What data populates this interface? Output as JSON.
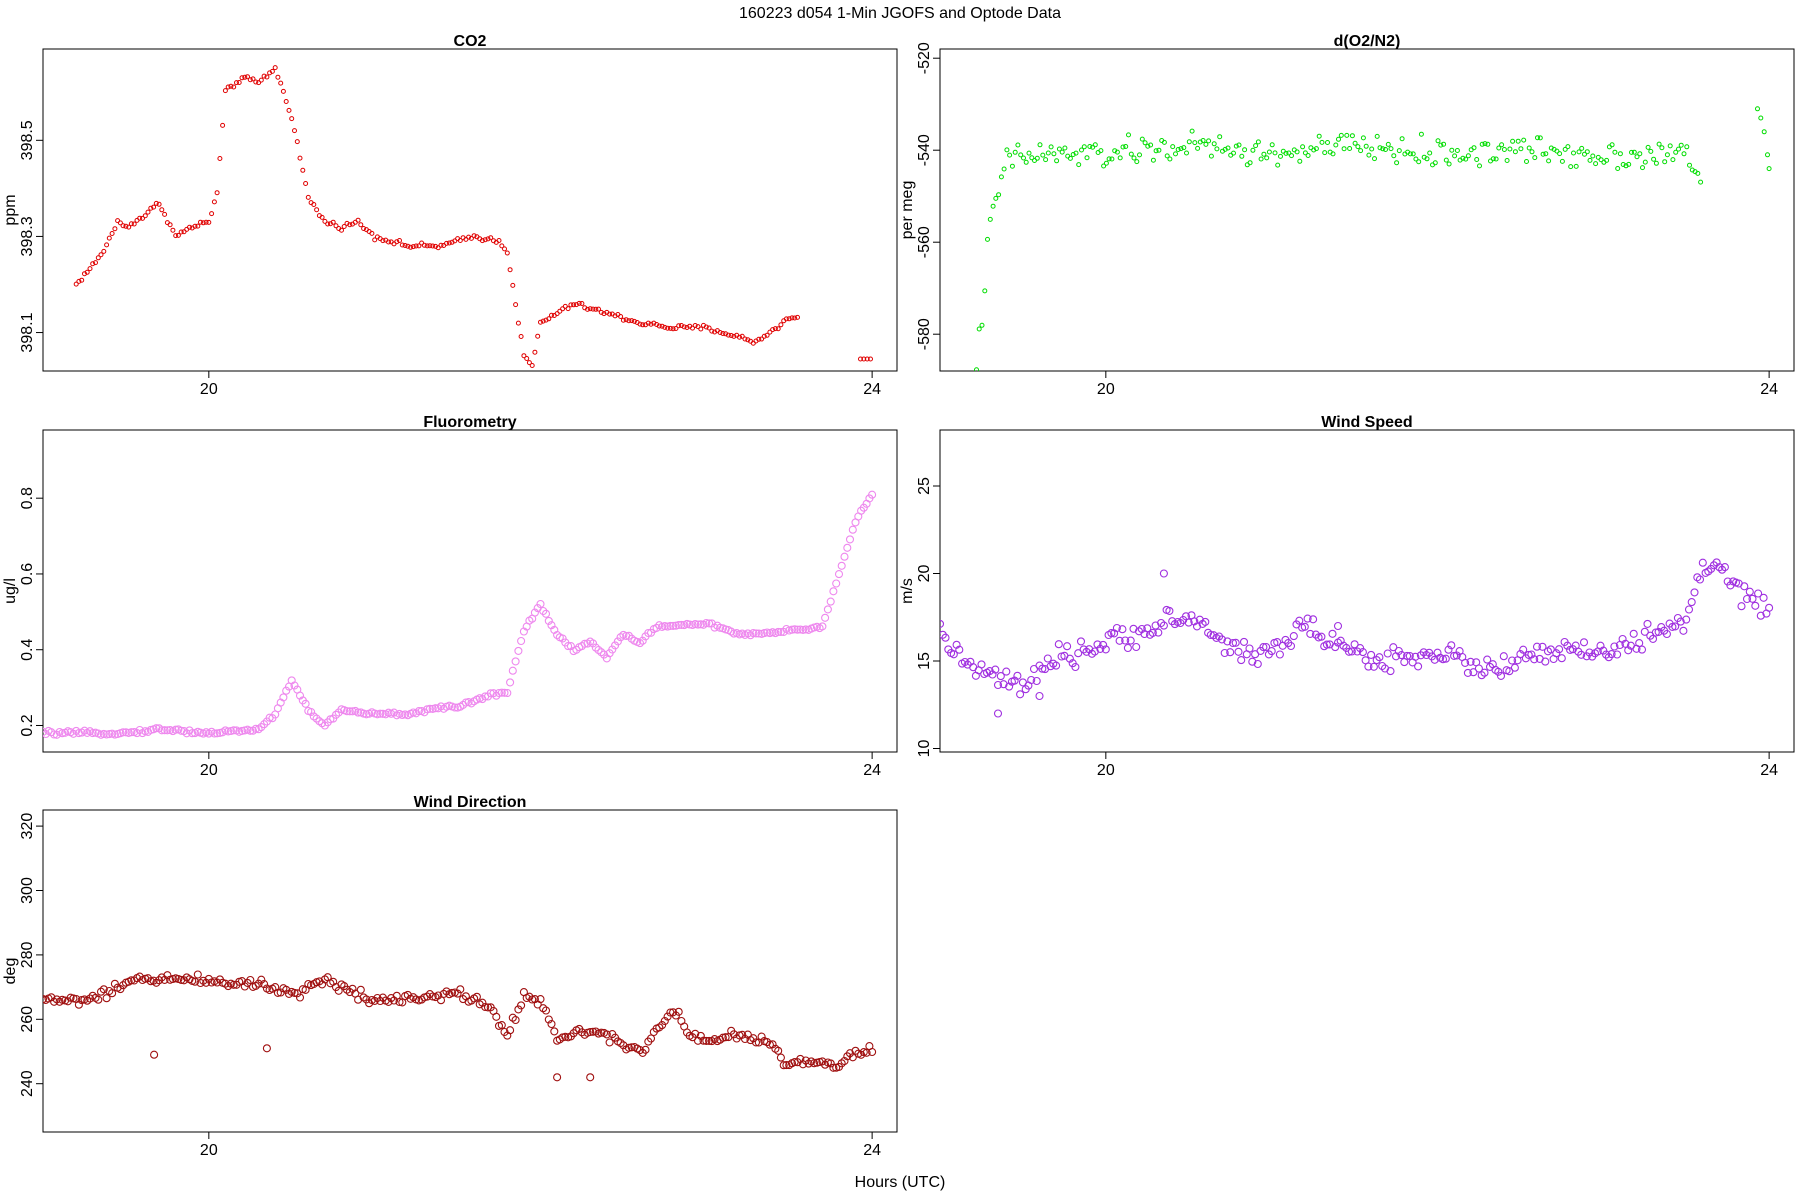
{
  "figure": {
    "title": "160223   d054   1-Min  JGOFS and Optode Data",
    "xlabel": "Hours (UTC)"
  },
  "chart_data": [
    {
      "type": "scatter",
      "title": "CO2",
      "xlabel": "Hours (UTC)",
      "ylabel": "ppm",
      "xlim": [
        19.0,
        24.15
      ],
      "ylim": [
        398.02,
        398.69
      ],
      "xticks": [
        20,
        24
      ],
      "yticks": [
        398.1,
        398.3,
        398.5
      ],
      "ytick_labels": [
        "398.1",
        "398.3",
        "398.5"
      ],
      "color": "#e00000",
      "marker_size": "small",
      "series_model": {
        "kind": "piecewise_linear_hourly",
        "start_hour": 19.2,
        "step_min": 1,
        "knots": [
          [
            19.2,
            398.2
          ],
          [
            19.35,
            398.26
          ],
          [
            19.45,
            398.33
          ],
          [
            19.5,
            398.32
          ],
          [
            19.6,
            398.34
          ],
          [
            19.7,
            398.37
          ],
          [
            19.8,
            398.3
          ],
          [
            19.9,
            398.32
          ],
          [
            20.0,
            398.33
          ],
          [
            20.05,
            398.39
          ],
          [
            20.1,
            398.6
          ],
          [
            20.2,
            398.63
          ],
          [
            20.3,
            398.62
          ],
          [
            20.4,
            398.65
          ],
          [
            20.5,
            398.55
          ],
          [
            20.6,
            398.38
          ],
          [
            20.7,
            398.33
          ],
          [
            20.8,
            398.32
          ],
          [
            20.9,
            398.33
          ],
          [
            21.0,
            398.3
          ],
          [
            21.2,
            398.28
          ],
          [
            21.4,
            398.28
          ],
          [
            21.6,
            398.3
          ],
          [
            21.75,
            398.29
          ],
          [
            21.8,
            398.27
          ],
          [
            21.9,
            398.05
          ],
          [
            21.95,
            398.03
          ],
          [
            22.0,
            398.12
          ],
          [
            22.2,
            398.16
          ],
          [
            22.4,
            398.14
          ],
          [
            22.5,
            398.13
          ],
          [
            22.6,
            398.12
          ],
          [
            22.8,
            398.11
          ],
          [
            23.0,
            398.11
          ],
          [
            23.2,
            398.09
          ],
          [
            23.3,
            398.08
          ],
          [
            23.5,
            398.13
          ],
          [
            23.55,
            398.13
          ]
        ],
        "jitter": 0.008,
        "extra_points": [
          [
            23.93,
            398.045
          ],
          [
            23.95,
            398.045
          ],
          [
            23.97,
            398.045
          ],
          [
            23.99,
            398.045
          ]
        ]
      }
    },
    {
      "type": "scatter",
      "title": "d(O2/N2)",
      "xlabel": "Hours (UTC)",
      "ylabel": "per meg",
      "xlim": [
        19.0,
        24.15
      ],
      "ylim": [
        -588,
        -518
      ],
      "xticks": [
        20,
        24
      ],
      "yticks": [
        -580,
        -560,
        -540,
        -520
      ],
      "ytick_labels": [
        "-580",
        "-560",
        "-540",
        "-520"
      ],
      "color": "#00dd00",
      "marker_size": "small",
      "series_model": {
        "kind": "piecewise_linear_hourly",
        "start_hour": 19.22,
        "step_min": 1,
        "knots": [
          [
            19.22,
            -586
          ],
          [
            19.25,
            -577
          ],
          [
            19.3,
            -557
          ],
          [
            19.4,
            -542
          ],
          [
            19.6,
            -541
          ],
          [
            20.0,
            -541
          ],
          [
            20.5,
            -539
          ],
          [
            21.0,
            -541
          ],
          [
            21.5,
            -539
          ],
          [
            22.0,
            -541
          ],
          [
            22.5,
            -540
          ],
          [
            23.0,
            -541
          ],
          [
            23.5,
            -541
          ],
          [
            23.6,
            -548
          ]
        ],
        "jitter": 4.5,
        "extra_points": [
          [
            23.93,
            -531
          ],
          [
            23.95,
            -533
          ],
          [
            23.97,
            -536
          ],
          [
            23.99,
            -541
          ],
          [
            24.0,
            -544
          ]
        ]
      }
    },
    {
      "type": "scatter",
      "title": "Fluorometry",
      "xlabel": "Hours (UTC)",
      "ylabel": "ug/l",
      "xlim": [
        19.0,
        24.15
      ],
      "ylim": [
        0.13,
        0.98
      ],
      "xticks": [
        20,
        24
      ],
      "yticks": [
        0.2,
        0.4,
        0.6,
        0.8
      ],
      "ytick_labels": [
        "0.2",
        "0.4",
        "0.6",
        "0.8"
      ],
      "color": "#ee88ee",
      "marker_size": "medium",
      "series_model": {
        "kind": "piecewise_linear_hourly",
        "start_hour": 19.0,
        "step_min": 1,
        "knots": [
          [
            19.0,
            0.18
          ],
          [
            19.5,
            0.18
          ],
          [
            19.7,
            0.19
          ],
          [
            20.0,
            0.18
          ],
          [
            20.3,
            0.19
          ],
          [
            20.4,
            0.23
          ],
          [
            20.5,
            0.32
          ],
          [
            20.6,
            0.24
          ],
          [
            20.7,
            0.2
          ],
          [
            20.8,
            0.24
          ],
          [
            21.0,
            0.23
          ],
          [
            21.2,
            0.23
          ],
          [
            21.3,
            0.24
          ],
          [
            21.5,
            0.25
          ],
          [
            21.7,
            0.28
          ],
          [
            21.8,
            0.29
          ],
          [
            21.9,
            0.45
          ],
          [
            22.0,
            0.52
          ],
          [
            22.1,
            0.44
          ],
          [
            22.2,
            0.4
          ],
          [
            22.3,
            0.42
          ],
          [
            22.4,
            0.38
          ],
          [
            22.5,
            0.44
          ],
          [
            22.6,
            0.42
          ],
          [
            22.7,
            0.46
          ],
          [
            23.0,
            0.47
          ],
          [
            23.2,
            0.44
          ],
          [
            23.3,
            0.44
          ],
          [
            23.5,
            0.45
          ],
          [
            23.7,
            0.46
          ],
          [
            23.8,
            0.6
          ],
          [
            23.9,
            0.74
          ],
          [
            24.0,
            0.81
          ]
        ],
        "jitter": 0.007,
        "extra_points": []
      }
    },
    {
      "type": "scatter",
      "title": "Wind Speed",
      "xlabel": "Hours (UTC)",
      "ylabel": "m/s",
      "xlim": [
        19.0,
        24.15
      ],
      "ylim": [
        9.8,
        28.2
      ],
      "xticks": [
        20,
        24
      ],
      "yticks": [
        10,
        15,
        20,
        25
      ],
      "ytick_labels": [
        "10",
        "15",
        "20",
        "25"
      ],
      "color": "#a030e0",
      "marker_size": "medium",
      "series_model": {
        "kind": "piecewise_linear_hourly",
        "start_hour": 19.0,
        "step_min": 1,
        "knots": [
          [
            19.0,
            16.5
          ],
          [
            19.2,
            14.5
          ],
          [
            19.5,
            13.5
          ],
          [
            19.7,
            15.0
          ],
          [
            20.0,
            16.0
          ],
          [
            20.3,
            17.0
          ],
          [
            20.5,
            17.5
          ],
          [
            20.8,
            15.5
          ],
          [
            21.0,
            15.5
          ],
          [
            21.2,
            17.0
          ],
          [
            21.4,
            16.0
          ],
          [
            21.6,
            15.0
          ],
          [
            22.0,
            15.5
          ],
          [
            22.3,
            14.5
          ],
          [
            22.5,
            15.0
          ],
          [
            22.7,
            15.5
          ],
          [
            23.0,
            15.5
          ],
          [
            23.2,
            16.0
          ],
          [
            23.5,
            17.5
          ],
          [
            23.6,
            20.0
          ],
          [
            23.7,
            20.5
          ],
          [
            23.8,
            19.0
          ],
          [
            24.0,
            18.0
          ]
        ],
        "jitter": 1.0,
        "extra_points": [
          [
            19.35,
            12.0
          ],
          [
            19.6,
            13.0
          ],
          [
            20.35,
            20.0
          ],
          [
            21.4,
            17.0
          ]
        ]
      }
    },
    {
      "type": "scatter",
      "title": "Wind Direction",
      "xlabel": "Hours (UTC)",
      "ylabel": "deg",
      "xlim": [
        19.0,
        24.15
      ],
      "ylim": [
        225,
        325
      ],
      "xticks": [
        20,
        24
      ],
      "yticks": [
        240,
        260,
        280,
        300,
        320
      ],
      "ytick_labels": [
        "240",
        "260",
        "280",
        "300",
        "320"
      ],
      "color": "#a01010",
      "marker_size": "medium",
      "series_model": {
        "kind": "piecewise_linear_hourly",
        "start_hour": 19.0,
        "step_min": 1,
        "knots": [
          [
            19.0,
            266
          ],
          [
            19.3,
            266
          ],
          [
            19.6,
            273
          ],
          [
            20.0,
            272
          ],
          [
            20.3,
            271
          ],
          [
            20.5,
            268
          ],
          [
            20.7,
            272
          ],
          [
            21.0,
            266
          ],
          [
            21.5,
            268
          ],
          [
            21.7,
            264
          ],
          [
            21.8,
            255
          ],
          [
            21.9,
            268
          ],
          [
            22.0,
            265
          ],
          [
            22.1,
            254
          ],
          [
            22.3,
            257
          ],
          [
            22.5,
            253
          ],
          [
            22.6,
            250
          ],
          [
            22.8,
            263
          ],
          [
            22.9,
            256
          ],
          [
            23.0,
            253
          ],
          [
            23.2,
            255
          ],
          [
            23.4,
            252
          ],
          [
            23.5,
            245
          ],
          [
            23.6,
            247
          ],
          [
            23.8,
            246
          ],
          [
            24.0,
            251
          ]
        ],
        "jitter": 2.5,
        "extra_points": [
          [
            19.67,
            249
          ],
          [
            20.35,
            251
          ],
          [
            22.1,
            242
          ],
          [
            22.3,
            242
          ]
        ]
      }
    }
  ]
}
